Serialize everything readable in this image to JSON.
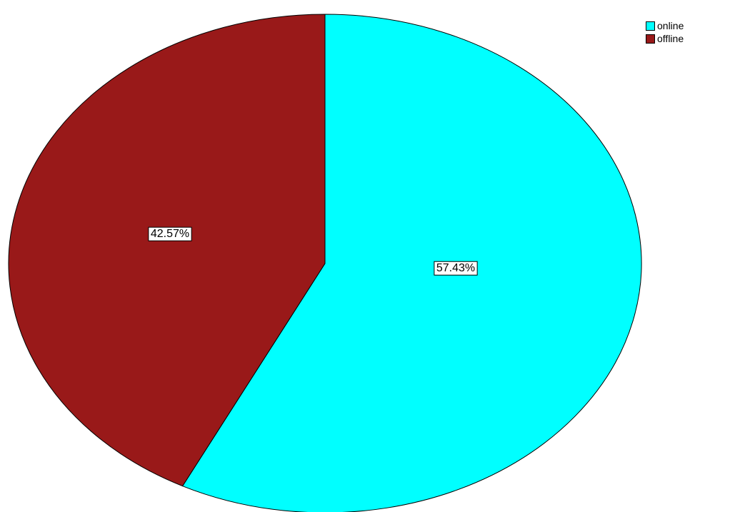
{
  "chart_data": {
    "type": "pie",
    "title": "",
    "slices": [
      {
        "name": "online",
        "value": 57.43,
        "label": "57.43%",
        "color": "#00FFFF"
      },
      {
        "name": "offline",
        "value": 42.57,
        "label": "42.57%",
        "color": "#991919"
      }
    ],
    "start_angle": "12 o'clock",
    "direction": "clockwise",
    "legend": {
      "position": "top-right",
      "items": [
        {
          "label": "online",
          "color": "#00FFFF"
        },
        {
          "label": "offline",
          "color": "#991919"
        }
      ]
    }
  }
}
